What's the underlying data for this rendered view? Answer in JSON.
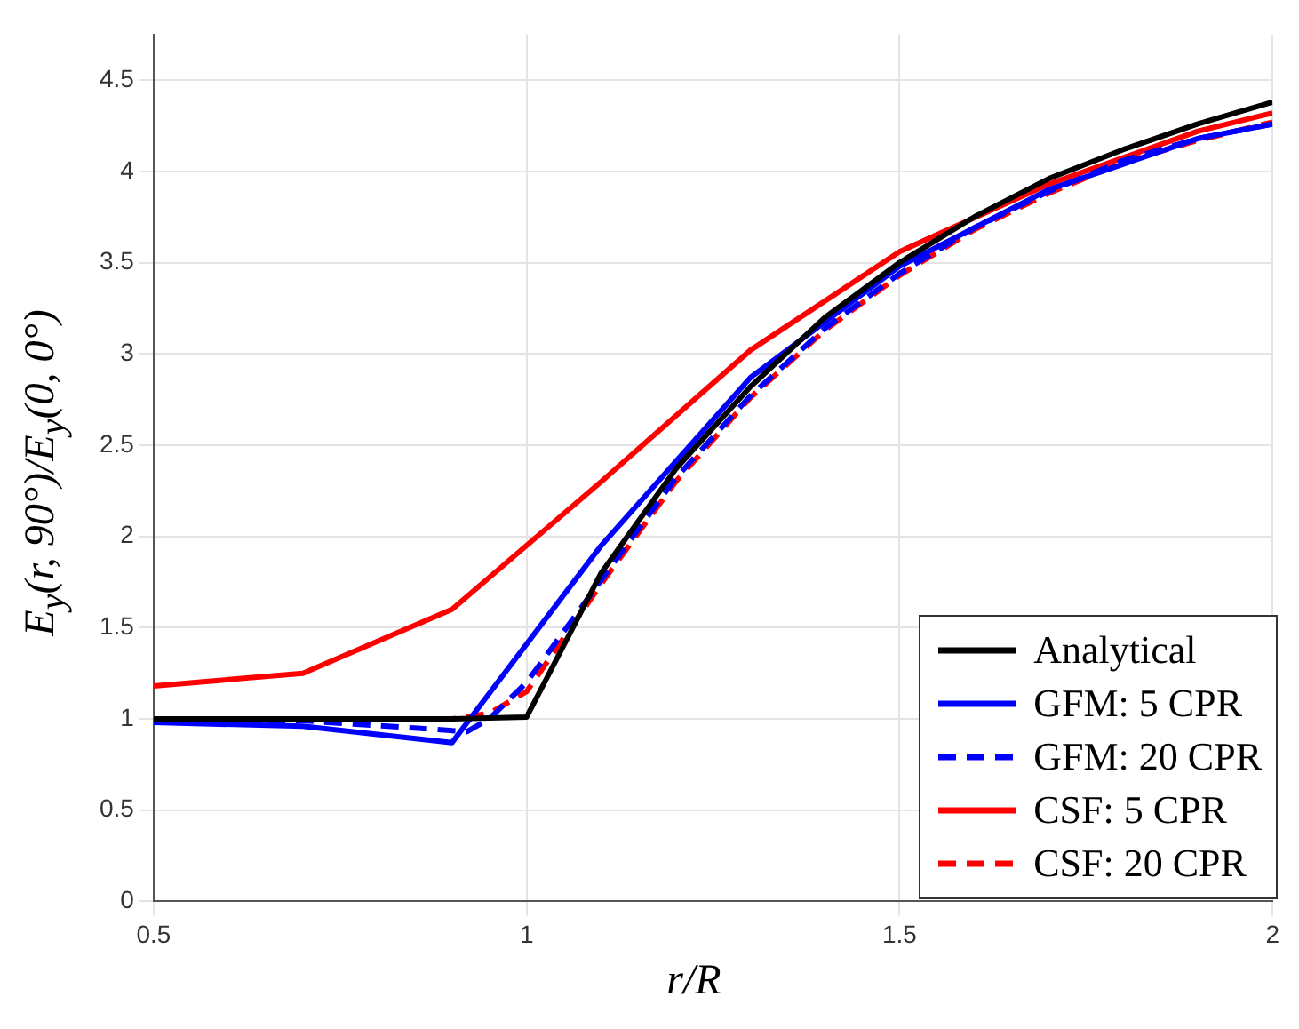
{
  "chart_data": {
    "type": "line",
    "xlabel": "r/R",
    "ylabel": "E$_{y}$(r, 90°)/E$_{y}$(0, 0°)",
    "xlim": [
      0.5,
      2
    ],
    "xticks": [
      0.5,
      1,
      1.5,
      2
    ],
    "ylim": [
      0,
      4.75
    ],
    "yticks": [
      0,
      0.5,
      1,
      1.5,
      2,
      2.5,
      3,
      3.5,
      4,
      4.5
    ],
    "grid": true,
    "legend": "bottom right",
    "marker": "none",
    "series": [
      {
        "name": "Analytical",
        "color": "#000000",
        "line_style": "solid",
        "x": [
          0.5,
          0.9,
          1.0,
          1.1,
          1.2,
          1.3,
          1.4,
          1.5,
          1.6,
          1.7,
          1.8,
          1.9,
          2.0
        ],
        "values": [
          1.0,
          1.0,
          1.01,
          1.8,
          2.37,
          2.82,
          3.2,
          3.5,
          3.75,
          3.96,
          4.12,
          4.26,
          4.38
        ]
      },
      {
        "name": "GFM: 5 CPR",
        "color": "#0000ff",
        "line_style": "solid",
        "x": [
          0.5,
          0.7,
          0.9,
          1.1,
          1.3,
          1.5,
          1.7,
          1.9,
          2.0
        ],
        "values": [
          0.98,
          0.96,
          0.87,
          1.95,
          2.87,
          3.48,
          3.9,
          4.18,
          4.26
        ]
      },
      {
        "name": "GFM: 20 CPR",
        "color": "#0000ff",
        "line_style": "dashed",
        "x": [
          0.5,
          0.7,
          0.85,
          0.92,
          0.95,
          1.0,
          1.1,
          1.2,
          1.3,
          1.4,
          1.5,
          1.6,
          1.7,
          1.8,
          1.9,
          2.0
        ],
        "values": [
          0.99,
          0.99,
          0.95,
          0.93,
          1.0,
          1.2,
          1.76,
          2.32,
          2.77,
          3.14,
          3.44,
          3.69,
          3.89,
          4.06,
          4.18,
          4.26
        ]
      },
      {
        "name": "CSF: 5 CPR",
        "color": "#ff0000",
        "line_style": "solid",
        "x": [
          0.5,
          0.7,
          0.9,
          1.1,
          1.3,
          1.5,
          1.7,
          1.9,
          2.0
        ],
        "values": [
          1.18,
          1.25,
          1.6,
          2.3,
          3.02,
          3.56,
          3.93,
          4.22,
          4.32
        ]
      },
      {
        "name": "CSF: 20 CPR",
        "color": "#ff0000",
        "line_style": "dashed",
        "x": [
          0.5,
          0.9,
          0.95,
          1.0,
          1.1,
          1.2,
          1.3,
          1.4,
          1.5,
          1.6,
          1.7,
          1.8,
          1.9,
          2.0
        ],
        "values": [
          1.0,
          1.0,
          1.03,
          1.15,
          1.74,
          2.3,
          2.76,
          3.13,
          3.43,
          3.68,
          3.88,
          4.05,
          4.17,
          4.27
        ]
      }
    ]
  }
}
